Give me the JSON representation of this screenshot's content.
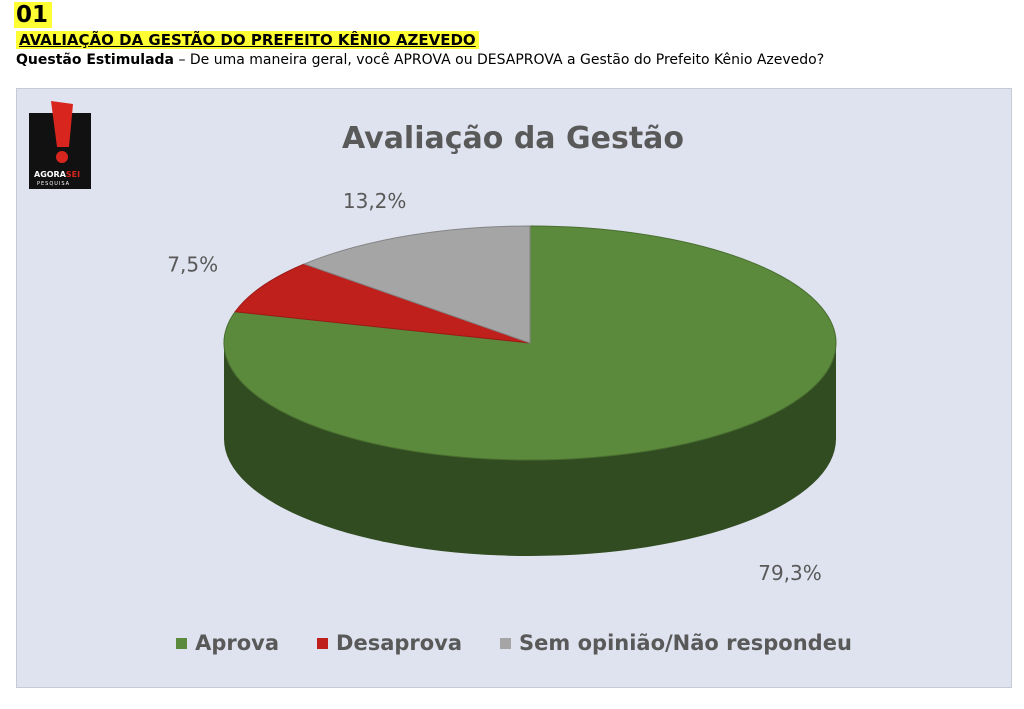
{
  "header": {
    "number": "01",
    "title": "AVALIAÇÃO DA GESTÃO DO PREFEITO KÊNIO AZEVEDO",
    "question_label": "Questão Estimulada",
    "question_text": " – De uma maneira geral, você APROVA ou DESAPROVA a Gestão do Prefeito Kênio Azevedo?"
  },
  "logo": {
    "text_main": "AGORA",
    "text_accent": "SEI",
    "text_sub": "PESQUISA"
  },
  "chart_data": {
    "type": "pie",
    "title": "Avaliação da Gestão",
    "legend_position": "bottom",
    "slices": [
      {
        "label": "Aprova",
        "value": 79.3,
        "display": "79,3%",
        "color": "#5b8a3c"
      },
      {
        "label": "Desaprova",
        "value": 7.5,
        "display": "7,5%",
        "color": "#c0201c"
      },
      {
        "label": "Sem opinião/Não respondeu",
        "value": 13.2,
        "display": "13,2%",
        "color": "#a5a5a5"
      }
    ]
  }
}
